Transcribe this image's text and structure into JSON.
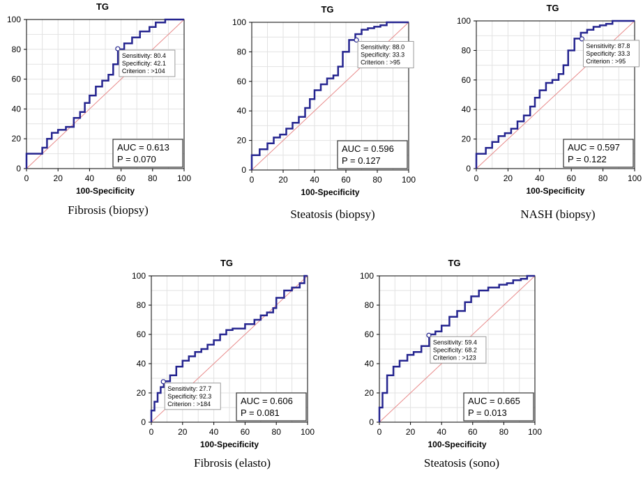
{
  "chart_data": [
    {
      "type": "line",
      "title": "TG",
      "xlabel": "100-Specificity",
      "ylabel": "",
      "xlim": [
        0,
        100
      ],
      "ylim": [
        0,
        100
      ],
      "xticks": [
        "0",
        "20",
        "40",
        "60",
        "80",
        "100"
      ],
      "yticks": [
        "0",
        "20",
        "40",
        "60",
        "80",
        "100"
      ],
      "caption": "Fibrosis (biopsy)",
      "series": [
        {
          "name": "ROC",
          "x": [
            0,
            0,
            10,
            10,
            13,
            13,
            16,
            16,
            20,
            20,
            25,
            25,
            30,
            30,
            34,
            34,
            37,
            37,
            40,
            40,
            44,
            44,
            48,
            48,
            52,
            52,
            55,
            55,
            58,
            58,
            62,
            62,
            67,
            67,
            72,
            72,
            78,
            78,
            82,
            82,
            88,
            88,
            100
          ],
          "y": [
            0,
            10,
            10,
            14,
            14,
            20,
            20,
            24,
            24,
            26,
            26,
            28,
            28,
            34,
            34,
            38,
            38,
            44,
            44,
            49,
            49,
            55,
            55,
            59,
            59,
            63,
            63,
            70,
            70,
            80,
            80,
            84,
            84,
            88,
            88,
            92,
            92,
            95,
            95,
            98,
            98,
            100,
            100
          ]
        }
      ],
      "point": {
        "x": 57.9,
        "y": 80.4
      },
      "tooltip": [
        "Sensitivity: 80.4",
        "Specificity: 42.1",
        "Criterion : >104"
      ],
      "stats": {
        "auc": "AUC = 0.613",
        "p": "P = 0.070"
      }
    },
    {
      "type": "line",
      "title": "TG",
      "xlabel": "100-Specificity",
      "ylabel": "",
      "xlim": [
        0,
        100
      ],
      "ylim": [
        0,
        100
      ],
      "xticks": [
        "0",
        "20",
        "40",
        "60",
        "80",
        "100"
      ],
      "yticks": [
        "0",
        "20",
        "40",
        "60",
        "80",
        "100"
      ],
      "caption": "Steatosis (biopsy)",
      "series": [
        {
          "name": "ROC",
          "x": [
            0,
            0,
            5,
            5,
            10,
            10,
            14,
            14,
            18,
            18,
            22,
            22,
            26,
            26,
            30,
            30,
            34,
            34,
            37,
            37,
            40,
            40,
            44,
            44,
            48,
            48,
            52,
            52,
            55,
            55,
            58,
            58,
            62,
            62,
            66,
            66,
            70,
            70,
            74,
            74,
            78,
            78,
            82,
            82,
            86,
            86,
            100
          ],
          "y": [
            0,
            10,
            10,
            14,
            14,
            18,
            18,
            22,
            22,
            24,
            24,
            28,
            28,
            32,
            32,
            36,
            36,
            42,
            42,
            48,
            48,
            54,
            54,
            58,
            58,
            62,
            62,
            64,
            64,
            70,
            70,
            80,
            80,
            88,
            88,
            92,
            92,
            95,
            95,
            96,
            96,
            97,
            97,
            98,
            98,
            100,
            100
          ]
        }
      ],
      "point": {
        "x": 66.7,
        "y": 88.0
      },
      "tooltip": [
        "Sensitivity: 88.0",
        "Specificity: 33.3",
        "Criterion : >95"
      ],
      "stats": {
        "auc": "AUC = 0.596",
        "p": "P = 0.127"
      }
    },
    {
      "type": "line",
      "title": "TG",
      "xlabel": "100-Specificity",
      "ylabel": "",
      "xlim": [
        0,
        100
      ],
      "ylim": [
        0,
        100
      ],
      "xticks": [
        "0",
        "20",
        "40",
        "60",
        "80",
        "100"
      ],
      "yticks": [
        "0",
        "20",
        "40",
        "60",
        "80",
        "100"
      ],
      "caption": "NASH (biopsy)",
      "series": [
        {
          "name": "ROC",
          "x": [
            0,
            0,
            6,
            6,
            10,
            10,
            14,
            14,
            18,
            18,
            22,
            22,
            26,
            26,
            30,
            30,
            34,
            34,
            37,
            37,
            40,
            40,
            44,
            44,
            48,
            48,
            52,
            52,
            55,
            55,
            58,
            58,
            62,
            62,
            66,
            66,
            70,
            70,
            74,
            74,
            78,
            78,
            82,
            82,
            86,
            86,
            100
          ],
          "y": [
            0,
            10,
            10,
            14,
            14,
            18,
            18,
            22,
            22,
            24,
            24,
            27,
            27,
            32,
            32,
            36,
            36,
            42,
            42,
            48,
            48,
            53,
            53,
            58,
            58,
            60,
            60,
            64,
            64,
            70,
            70,
            80,
            80,
            88,
            88,
            92,
            92,
            94,
            94,
            96,
            96,
            97,
            97,
            98,
            98,
            100,
            100
          ]
        }
      ],
      "point": {
        "x": 66.7,
        "y": 87.8
      },
      "tooltip": [
        "Sensitivity: 87.8",
        "Specificity: 33.3",
        "Criterion : >95"
      ],
      "stats": {
        "auc": "AUC = 0.597",
        "p": "P = 0.122"
      }
    },
    {
      "type": "line",
      "title": "TG",
      "xlabel": "100-Specificity",
      "ylabel": "",
      "xlim": [
        0,
        100
      ],
      "ylim": [
        0,
        100
      ],
      "xticks": [
        "0",
        "20",
        "40",
        "60",
        "80",
        "100"
      ],
      "yticks": [
        "0",
        "20",
        "40",
        "60",
        "80",
        "100"
      ],
      "caption": "Fibrosis (elasto)",
      "series": [
        {
          "name": "ROC",
          "x": [
            0,
            0,
            2,
            2,
            4,
            4,
            6,
            6,
            8,
            8,
            12,
            12,
            16,
            16,
            20,
            20,
            24,
            24,
            28,
            28,
            32,
            32,
            36,
            36,
            40,
            40,
            44,
            44,
            48,
            48,
            52,
            52,
            60,
            60,
            66,
            66,
            70,
            70,
            74,
            74,
            78,
            78,
            80,
            80,
            85,
            85,
            90,
            90,
            95,
            95,
            98,
            98,
            100
          ],
          "y": [
            0,
            8,
            8,
            14,
            14,
            20,
            20,
            24,
            24,
            28,
            28,
            32,
            32,
            38,
            38,
            42,
            42,
            45,
            45,
            48,
            48,
            50,
            50,
            53,
            53,
            56,
            56,
            60,
            60,
            63,
            63,
            64,
            64,
            67,
            67,
            70,
            70,
            73,
            73,
            75,
            75,
            78,
            78,
            85,
            85,
            90,
            90,
            92,
            92,
            95,
            95,
            100,
            100
          ]
        }
      ],
      "point": {
        "x": 7.7,
        "y": 27.7
      },
      "tooltip": [
        "Sensitivity: 27.7",
        "Specificity: 92.3",
        "Criterion : >184"
      ],
      "stats": {
        "auc": "AUC = 0.606",
        "p": "P = 0.081"
      }
    },
    {
      "type": "line",
      "title": "TG",
      "xlabel": "100-Specificity",
      "ylabel": "",
      "xlim": [
        0,
        100
      ],
      "ylim": [
        0,
        100
      ],
      "xticks": [
        "0",
        "20",
        "40",
        "60",
        "80",
        "100"
      ],
      "yticks": [
        "0",
        "20",
        "40",
        "60",
        "80",
        "100"
      ],
      "caption": "Steatosis (sono)",
      "series": [
        {
          "name": "ROC",
          "x": [
            0,
            0,
            2,
            2,
            5,
            5,
            9,
            9,
            13,
            13,
            18,
            18,
            22,
            22,
            27,
            27,
            32,
            32,
            36,
            36,
            40,
            40,
            45,
            45,
            50,
            50,
            55,
            55,
            59,
            59,
            64,
            64,
            70,
            70,
            77,
            77,
            82,
            82,
            86,
            86,
            91,
            91,
            95,
            95,
            100
          ],
          "y": [
            0,
            10,
            10,
            20,
            20,
            32,
            32,
            38,
            38,
            42,
            42,
            46,
            46,
            48,
            48,
            52,
            52,
            60,
            60,
            62,
            62,
            66,
            66,
            72,
            72,
            76,
            76,
            82,
            82,
            86,
            86,
            90,
            90,
            92,
            92,
            94,
            94,
            95,
            95,
            97,
            97,
            98,
            98,
            100,
            100
          ]
        }
      ],
      "point": {
        "x": 31.8,
        "y": 59.4
      },
      "tooltip": [
        "Sensitivity: 59.4",
        "Specificity: 68.2",
        "Criterion : >123"
      ],
      "stats": {
        "auc": "AUC = 0.665",
        "p": "P = 0.013"
      }
    }
  ],
  "colors": {
    "curve": "#24248f",
    "diagonal": "#e88a8a",
    "grid": "#e2e2e2",
    "axis": "#000000"
  }
}
